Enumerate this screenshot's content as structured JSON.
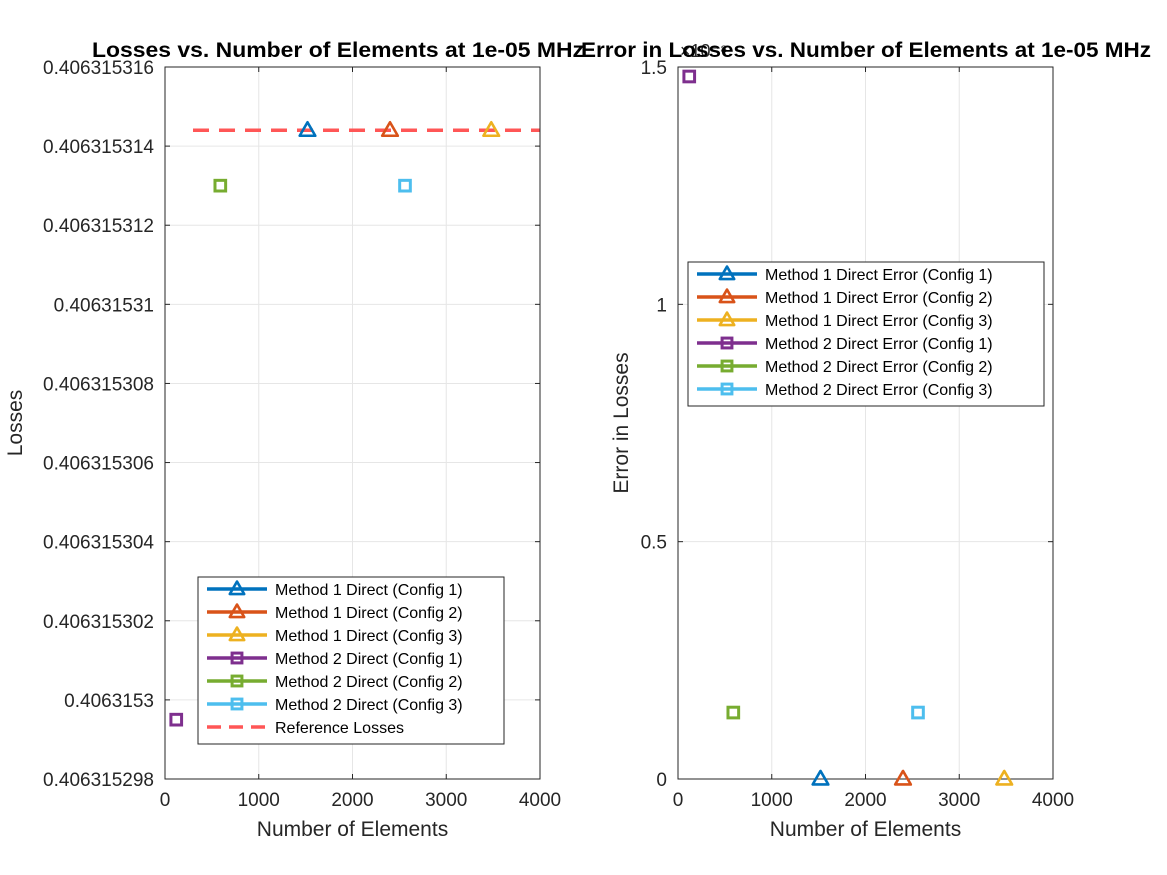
{
  "chart_data": [
    {
      "type": "scatter",
      "title": "Losses vs. Number of Elements at 1e-05 MHz",
      "xlabel": "Number of Elements",
      "ylabel": "Losses",
      "xlim": [
        0,
        4000
      ],
      "ylim": [
        0.406315298,
        0.406315316
      ],
      "xticks": [
        0,
        1000,
        2000,
        3000,
        4000
      ],
      "xtick_labels": [
        "0",
        "1000",
        "2000",
        "3000",
        "4000"
      ],
      "yticks": [
        0.406315298,
        0.4063153,
        0.406315302,
        0.406315304,
        0.406315306,
        0.406315308,
        0.40631531,
        0.406315312,
        0.406315314,
        0.406315316
      ],
      "ytick_labels": [
        "0.406315298",
        "0.4063153",
        "0.406315302",
        "0.406315304",
        "0.406315306",
        "0.406315308",
        "0.40631531",
        "0.406315312",
        "0.406315314",
        "0.406315316"
      ],
      "grid": true,
      "legend_position": "bottom-right",
      "series": [
        {
          "name": "Method 1 Direct (Config 1)",
          "marker": "triangle",
          "color": "#0072BD",
          "x": [
            1520
          ],
          "y": [
            0.4063153144
          ]
        },
        {
          "name": "Method 1 Direct (Config 2)",
          "marker": "triangle",
          "color": "#D95319",
          "x": [
            2400
          ],
          "y": [
            0.4063153144
          ]
        },
        {
          "name": "Method 1 Direct (Config 3)",
          "marker": "triangle",
          "color": "#EDB120",
          "x": [
            3480
          ],
          "y": [
            0.4063153144
          ]
        },
        {
          "name": "Method 2 Direct (Config 1)",
          "marker": "square",
          "color": "#7E2F8E",
          "x": [
            120
          ],
          "y": [
            0.4063152995
          ]
        },
        {
          "name": "Method 2 Direct (Config 2)",
          "marker": "square",
          "color": "#77AC30",
          "x": [
            590
          ],
          "y": [
            0.406315313
          ]
        },
        {
          "name": "Method 2 Direct (Config 3)",
          "marker": "square",
          "color": "#4DBEEE",
          "x": [
            2560
          ],
          "y": [
            0.406315313
          ]
        }
      ],
      "reference_line": {
        "name": "Reference Losses",
        "color": "#FF4D4D",
        "y": 0.4063153144
      }
    },
    {
      "type": "scatter",
      "title": "Error in Losses vs. Number of Elements at 1e-05 MHz",
      "xlabel": "Number of Elements",
      "ylabel": "Error in Losses",
      "xlim": [
        0,
        4000
      ],
      "ylim": [
        0,
        1.5
      ],
      "exponent_label": "×10⁻⁸",
      "xticks": [
        0,
        1000,
        2000,
        3000,
        4000
      ],
      "xtick_labels": [
        "0",
        "1000",
        "2000",
        "3000",
        "4000"
      ],
      "yticks": [
        0,
        0.5,
        1,
        1.5
      ],
      "ytick_labels": [
        "0",
        "0.5",
        "1",
        "1.5"
      ],
      "grid": true,
      "legend_position": "middle-right",
      "series": [
        {
          "name": "Method 1 Direct Error (Config 1)",
          "marker": "triangle",
          "color": "#0072BD",
          "x": [
            1520
          ],
          "y": [
            0
          ]
        },
        {
          "name": "Method 1 Direct Error (Config 2)",
          "marker": "triangle",
          "color": "#D95319",
          "x": [
            2400
          ],
          "y": [
            0
          ]
        },
        {
          "name": "Method 1 Direct Error (Config 3)",
          "marker": "triangle",
          "color": "#EDB120",
          "x": [
            3480
          ],
          "y": [
            0
          ]
        },
        {
          "name": "Method 2 Direct Error (Config 1)",
          "marker": "square",
          "color": "#7E2F8E",
          "x": [
            120
          ],
          "y": [
            1.48
          ]
        },
        {
          "name": "Method 2 Direct Error (Config 2)",
          "marker": "square",
          "color": "#77AC30",
          "x": [
            590
          ],
          "y": [
            0.14
          ]
        },
        {
          "name": "Method 2 Direct Error (Config 3)",
          "marker": "square",
          "color": "#4DBEEE",
          "x": [
            2560
          ],
          "y": [
            0.14
          ]
        }
      ]
    }
  ]
}
